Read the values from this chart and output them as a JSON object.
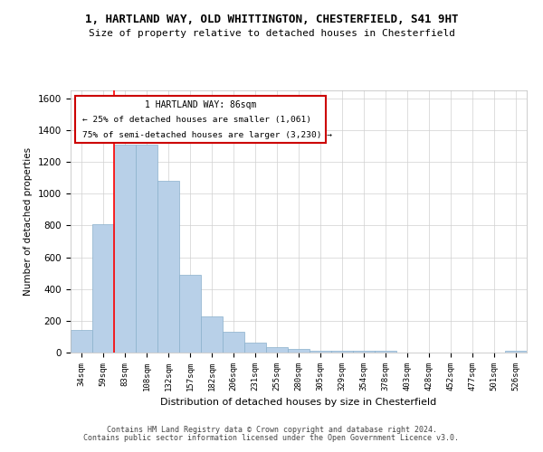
{
  "title_line1": "1, HARTLAND WAY, OLD WHITTINGTON, CHESTERFIELD, S41 9HT",
  "title_line2": "Size of property relative to detached houses in Chesterfield",
  "xlabel": "Distribution of detached houses by size in Chesterfield",
  "ylabel": "Number of detached properties",
  "categories": [
    "34sqm",
    "59sqm",
    "83sqm",
    "108sqm",
    "132sqm",
    "157sqm",
    "182sqm",
    "206sqm",
    "231sqm",
    "255sqm",
    "280sqm",
    "305sqm",
    "329sqm",
    "354sqm",
    "378sqm",
    "403sqm",
    "428sqm",
    "452sqm",
    "477sqm",
    "501sqm",
    "526sqm"
  ],
  "values": [
    140,
    810,
    1310,
    1310,
    1080,
    490,
    225,
    130,
    65,
    35,
    22,
    14,
    14,
    14,
    14,
    0,
    0,
    0,
    0,
    0,
    14
  ],
  "bar_color": "#b8d0e8",
  "bar_edge_color": "#8ab0cc",
  "property_line_x": 2.0,
  "property_sqm": 86,
  "pct_smaller": 25,
  "count_smaller": 1061,
  "pct_larger": 75,
  "count_larger": 3230,
  "annotation_box_color": "#cc0000",
  "ylim": [
    0,
    1650
  ],
  "yticks": [
    0,
    200,
    400,
    600,
    800,
    1000,
    1200,
    1400,
    1600
  ],
  "footer_line1": "Contains HM Land Registry data © Crown copyright and database right 2024.",
  "footer_line2": "Contains public sector information licensed under the Open Government Licence v3.0.",
  "bg_color": "#ffffff",
  "grid_color": "#d0d0d0"
}
